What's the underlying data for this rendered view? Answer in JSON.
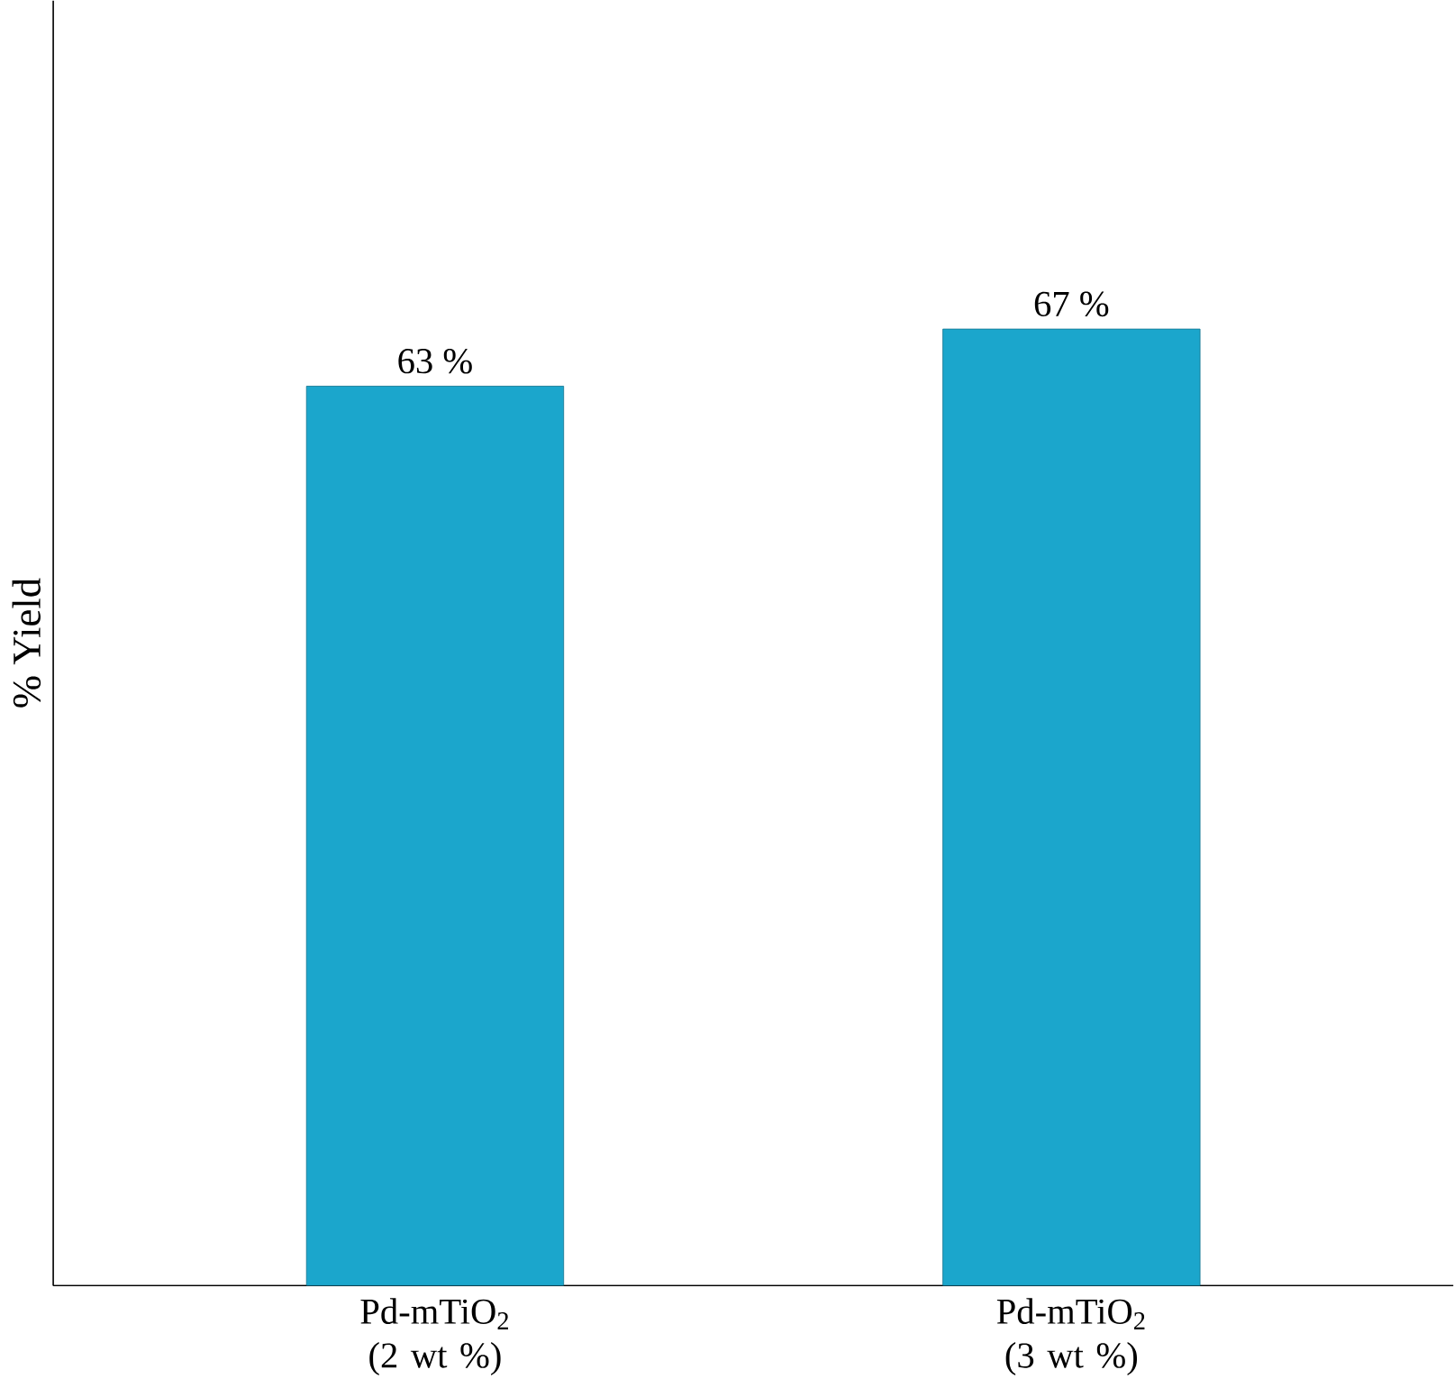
{
  "chart_data": {
    "type": "bar",
    "ylabel": "% Yield",
    "categories": [
      "Pd-mTiO$_{2}$ (2 wt %)",
      "Pd-mTiO$_{2}$ (3 wt %)"
    ],
    "values": [
      63,
      67
    ],
    "color": "#1ba6cc",
    "value_labels": [
      "63 %",
      "67 %"
    ],
    "ylim": [
      0,
      90
    ],
    "tick_labels": "x"
  }
}
